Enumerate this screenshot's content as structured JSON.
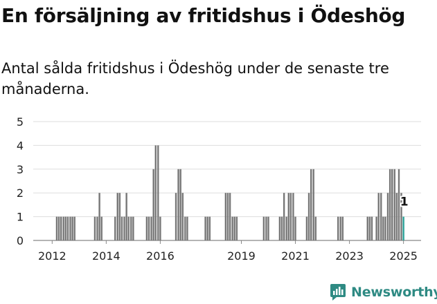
{
  "header": {
    "title": "En försäljning av fritidshus i Ödeshög",
    "subtitle": "Antal sålda fritidshus i Ödeshög under de senaste tre månaderna."
  },
  "brand": {
    "name": "Newsworthy",
    "color": "#2e8a83"
  },
  "chart_data": {
    "type": "bar",
    "title": "",
    "xlabel": "",
    "ylabel": "",
    "ylim": [
      0,
      5
    ],
    "yticks": [
      0,
      1,
      2,
      3,
      4,
      5
    ],
    "grid": true,
    "legend": "none",
    "xlim": [
      2011.3,
      2025.65
    ],
    "xtick_labels": [
      "2012",
      "2014",
      "2016",
      "2019",
      "2021",
      "2023",
      "2025"
    ],
    "xtick_positions": [
      2012,
      2014,
      2016,
      2019,
      2021,
      2023,
      2025
    ],
    "bar_color": "#777777",
    "highlight_color": "#2aa198",
    "highlight_label": "1",
    "series": [
      {
        "values": [
          [
            2012.17,
            1
          ],
          [
            2012.25,
            1
          ],
          [
            2012.33,
            1
          ],
          [
            2012.42,
            1
          ],
          [
            2012.5,
            1
          ],
          [
            2012.58,
            1
          ],
          [
            2012.67,
            1
          ],
          [
            2012.75,
            1
          ],
          [
            2012.83,
            1
          ],
          [
            2013.58,
            1
          ],
          [
            2013.67,
            1
          ],
          [
            2013.75,
            2
          ],
          [
            2013.83,
            1
          ],
          [
            2014.33,
            1
          ],
          [
            2014.42,
            2
          ],
          [
            2014.5,
            2
          ],
          [
            2014.58,
            1
          ],
          [
            2014.67,
            1
          ],
          [
            2014.75,
            2
          ],
          [
            2014.83,
            1
          ],
          [
            2014.92,
            1
          ],
          [
            2015.0,
            1
          ],
          [
            2015.5,
            1
          ],
          [
            2015.58,
            1
          ],
          [
            2015.67,
            1
          ],
          [
            2015.75,
            3
          ],
          [
            2015.83,
            4
          ],
          [
            2015.92,
            4
          ],
          [
            2016.0,
            1
          ],
          [
            2016.58,
            2
          ],
          [
            2016.67,
            3
          ],
          [
            2016.75,
            3
          ],
          [
            2016.83,
            2
          ],
          [
            2016.92,
            1
          ],
          [
            2017.0,
            1
          ],
          [
            2017.67,
            1
          ],
          [
            2017.75,
            1
          ],
          [
            2017.83,
            1
          ],
          [
            2018.42,
            2
          ],
          [
            2018.5,
            2
          ],
          [
            2018.58,
            2
          ],
          [
            2018.67,
            1
          ],
          [
            2018.75,
            1
          ],
          [
            2018.83,
            1
          ],
          [
            2019.83,
            1
          ],
          [
            2019.92,
            1
          ],
          [
            2020.0,
            1
          ],
          [
            2020.42,
            1
          ],
          [
            2020.5,
            1
          ],
          [
            2020.58,
            2
          ],
          [
            2020.67,
            1
          ],
          [
            2020.75,
            2
          ],
          [
            2020.83,
            2
          ],
          [
            2020.92,
            2
          ],
          [
            2021.0,
            1
          ],
          [
            2021.42,
            1
          ],
          [
            2021.5,
            2
          ],
          [
            2021.58,
            3
          ],
          [
            2021.67,
            3
          ],
          [
            2021.75,
            1
          ],
          [
            2022.58,
            1
          ],
          [
            2022.67,
            1
          ],
          [
            2022.75,
            1
          ],
          [
            2023.67,
            1
          ],
          [
            2023.75,
            1
          ],
          [
            2023.83,
            1
          ],
          [
            2024.0,
            1
          ],
          [
            2024.08,
            2
          ],
          [
            2024.17,
            2
          ],
          [
            2024.25,
            1
          ],
          [
            2024.33,
            1
          ],
          [
            2024.42,
            2
          ],
          [
            2024.5,
            3
          ],
          [
            2024.58,
            3
          ],
          [
            2024.67,
            3
          ],
          [
            2024.75,
            2
          ],
          [
            2024.83,
            3
          ],
          [
            2024.92,
            2
          ],
          [
            2025.0,
            1
          ]
        ]
      }
    ]
  }
}
